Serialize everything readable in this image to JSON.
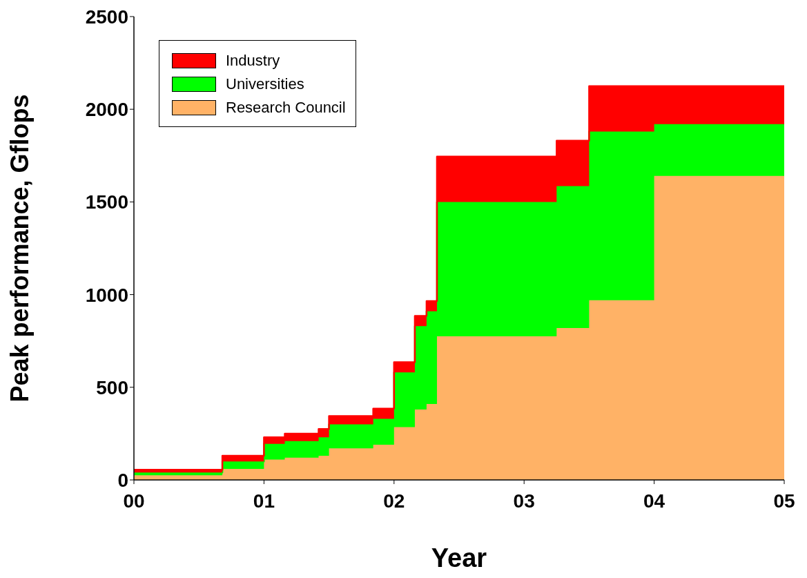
{
  "chart_data": {
    "type": "area",
    "stacked": true,
    "xlabel": "Year",
    "ylabel": "Peak performance, Gflops",
    "x": [
      0,
      0.68,
      0.68,
      1,
      1,
      1.16,
      1.16,
      1.42,
      1.42,
      1.5,
      1.5,
      1.84,
      1.84,
      2,
      2,
      2.16,
      2.16,
      2.25,
      2.25,
      2.33,
      2.33,
      3.25,
      3.25,
      3.5,
      3.5,
      4,
      4,
      5
    ],
    "series": [
      {
        "name": "Research Council",
        "color": "#ffb266",
        "values": [
          25,
          25,
          60,
          60,
          110,
          110,
          120,
          120,
          130,
          130,
          170,
          170,
          190,
          190,
          285,
          285,
          380,
          380,
          410,
          410,
          775,
          775,
          820,
          820,
          970,
          970,
          1640,
          1640
        ]
      },
      {
        "name": "Universities",
        "color": "#00ff00",
        "values": [
          15,
          15,
          40,
          40,
          85,
          85,
          90,
          90,
          100,
          100,
          130,
          130,
          140,
          140,
          295,
          295,
          450,
          450,
          500,
          500,
          725,
          725,
          765,
          765,
          910,
          910,
          280,
          280
        ]
      },
      {
        "name": "Industry",
        "color": "#ff0000",
        "values": [
          15,
          15,
          30,
          30,
          35,
          35,
          40,
          40,
          45,
          45,
          45,
          45,
          55,
          55,
          55,
          55,
          55,
          55,
          55,
          55,
          245,
          245,
          245,
          245,
          245,
          245,
          205,
          205
        ]
      }
    ],
    "xlim": [
      0,
      5
    ],
    "xticks": [
      {
        "value": 0,
        "label": "00"
      },
      {
        "value": 1,
        "label": "01"
      },
      {
        "value": 2,
        "label": "02"
      },
      {
        "value": 3,
        "label": "03"
      },
      {
        "value": 4,
        "label": "04"
      },
      {
        "value": 5,
        "label": "05"
      }
    ],
    "ylim": [
      0,
      2500
    ],
    "yticks": [
      0,
      500,
      1000,
      1500,
      2000,
      2500
    ],
    "grid": false,
    "legend": "top left"
  }
}
